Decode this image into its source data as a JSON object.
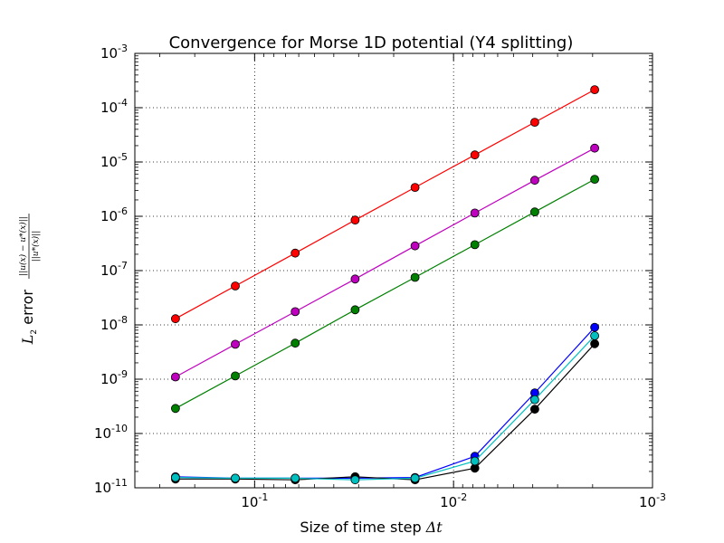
{
  "chart_data": {
    "type": "line",
    "title": "Convergence for Morse 1D potential (Y4 splitting)",
    "xlabel_text": "Size of time step ",
    "xlabel_symbol": "Δt",
    "ylabel_main": "L",
    "ylabel_sub": "2",
    "ylabel_text": " error ",
    "ylabel_frac_num": "||u(x) − u*(x)||",
    "ylabel_frac_den": "||u*(x)||",
    "x_scale": "log",
    "y_scale": "log",
    "x_inverted": true,
    "xlim": [
      0.4,
      0.001
    ],
    "ylim": [
      1e-11,
      0.001
    ],
    "grid": true,
    "x_ticks": [
      {
        "value": 0.1,
        "base": "10",
        "exp": "-1"
      },
      {
        "value": 0.01,
        "base": "10",
        "exp": "-2"
      },
      {
        "value": 0.001,
        "base": "10",
        "exp": "-3"
      }
    ],
    "y_ticks": [
      {
        "value": 1e-11,
        "base": "10",
        "exp": "-11"
      },
      {
        "value": 1e-10,
        "base": "10",
        "exp": "-10"
      },
      {
        "value": 1e-09,
        "base": "10",
        "exp": "-9"
      },
      {
        "value": 1e-08,
        "base": "10",
        "exp": "-8"
      },
      {
        "value": 1e-07,
        "base": "10",
        "exp": "-7"
      },
      {
        "value": 1e-06,
        "base": "10",
        "exp": "-6"
      },
      {
        "value": 1e-05,
        "base": "10",
        "exp": "-5"
      },
      {
        "value": 0.0001,
        "base": "10",
        "exp": "-4"
      },
      {
        "value": 0.001,
        "base": "10",
        "exp": "-3"
      }
    ],
    "x": [
      0.25,
      0.125,
      0.0625,
      0.03125,
      0.015625,
      0.0078125,
      0.00390625,
      0.001953125
    ],
    "series": [
      {
        "color": "#ff0000",
        "values": [
          1.3e-08,
          5.2e-08,
          2.1e-07,
          8.5e-07,
          3.4e-06,
          1.35e-05,
          5.4e-05,
          0.000215
        ]
      },
      {
        "color": "#bf00bf",
        "values": [
          1.1e-09,
          4.4e-09,
          1.75e-08,
          7e-08,
          2.85e-07,
          1.15e-06,
          4.6e-06,
          1.8e-05
        ]
      },
      {
        "color": "#008000",
        "values": [
          2.9e-10,
          1.15e-09,
          4.6e-09,
          1.9e-08,
          7.5e-08,
          3e-07,
          1.2e-06,
          4.8e-06
        ]
      },
      {
        "color": "#0000ff",
        "values": [
          1.6e-11,
          1.5e-11,
          1.5e-11,
          1.5e-11,
          1.55e-11,
          3.8e-11,
          5.6e-10,
          9e-09
        ]
      },
      {
        "color": "#000000",
        "values": [
          1.45e-11,
          1.45e-11,
          1.4e-11,
          1.6e-11,
          1.4e-11,
          2.3e-11,
          2.8e-10,
          4.5e-09
        ]
      },
      {
        "color": "#00bfbf",
        "values": [
          1.55e-11,
          1.5e-11,
          1.5e-11,
          1.4e-11,
          1.5e-11,
          3.1e-11,
          4.2e-10,
          6.3e-09
        ]
      }
    ]
  }
}
